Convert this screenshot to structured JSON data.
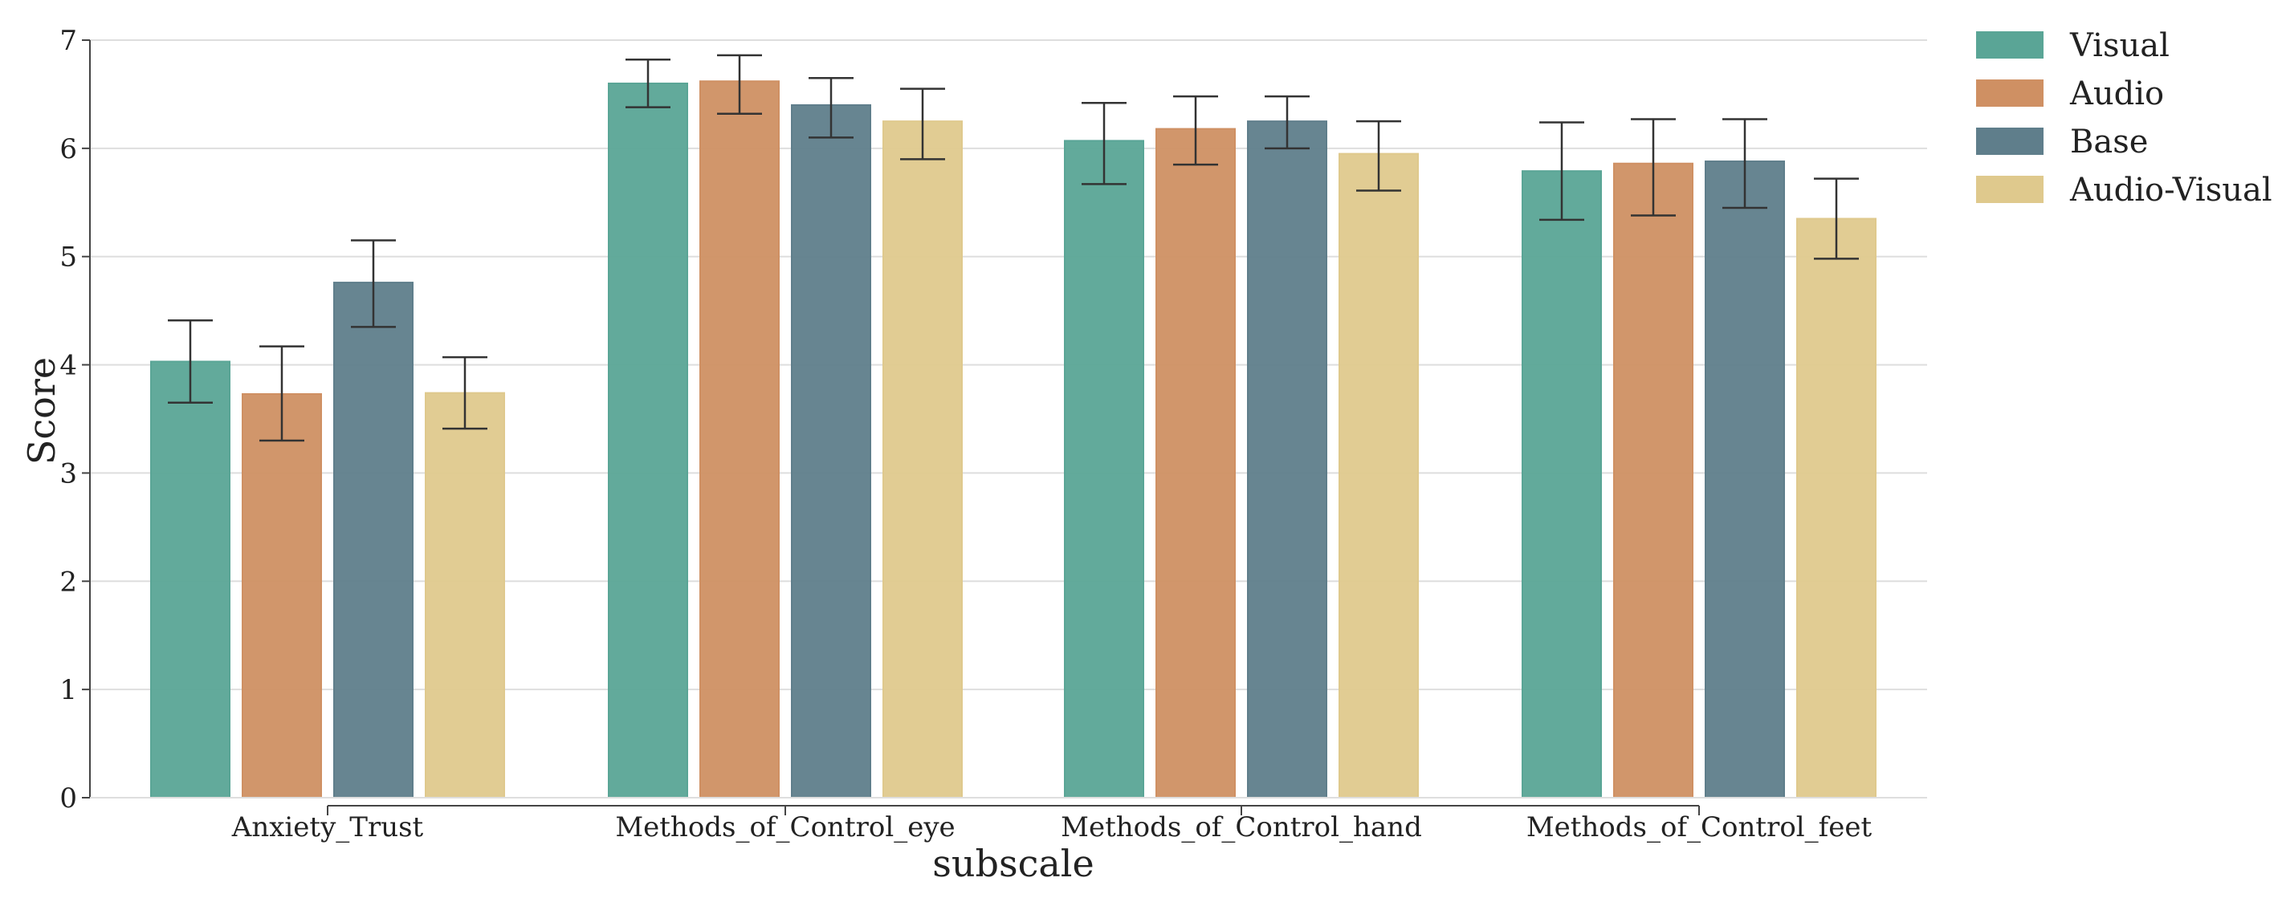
{
  "chart_data": {
    "type": "bar",
    "categories": [
      "Anxiety_Trust",
      "Methods_of_Control_eye",
      "Methods_of_Control_hand",
      "Methods_of_Control_feet"
    ],
    "series": [
      {
        "name": "Visual",
        "color": "#5aa596",
        "values": [
          4.03,
          6.6,
          6.07,
          5.79
        ],
        "err_low": [
          3.65,
          6.38,
          5.67,
          5.34
        ],
        "err_high": [
          4.41,
          6.82,
          6.42,
          6.24
        ]
      },
      {
        "name": "Audio",
        "color": "#cf9063",
        "values": [
          3.73,
          6.62,
          6.18,
          5.86
        ],
        "err_low": [
          3.3,
          6.32,
          5.85,
          5.38
        ],
        "err_high": [
          4.17,
          6.86,
          6.48,
          6.27
        ]
      },
      {
        "name": "Base",
        "color": "#5f7e8b",
        "values": [
          4.76,
          6.4,
          6.25,
          5.88
        ],
        "err_low": [
          4.35,
          6.1,
          6.0,
          5.45
        ],
        "err_high": [
          5.15,
          6.65,
          6.48,
          6.27
        ]
      },
      {
        "name": "Audio-Visual",
        "color": "#dfc98d",
        "values": [
          3.74,
          6.25,
          5.95,
          5.35
        ],
        "err_low": [
          3.41,
          5.9,
          5.61,
          4.98
        ],
        "err_high": [
          4.07,
          6.55,
          6.25,
          5.72
        ]
      }
    ],
    "xlabel": "subscale",
    "ylabel": "Score",
    "ylim": [
      0,
      7
    ],
    "yticks": [
      "0",
      "1",
      "2",
      "3",
      "4",
      "5",
      "6",
      "7"
    ],
    "grid": "horizontal",
    "legend": "right, outside"
  }
}
